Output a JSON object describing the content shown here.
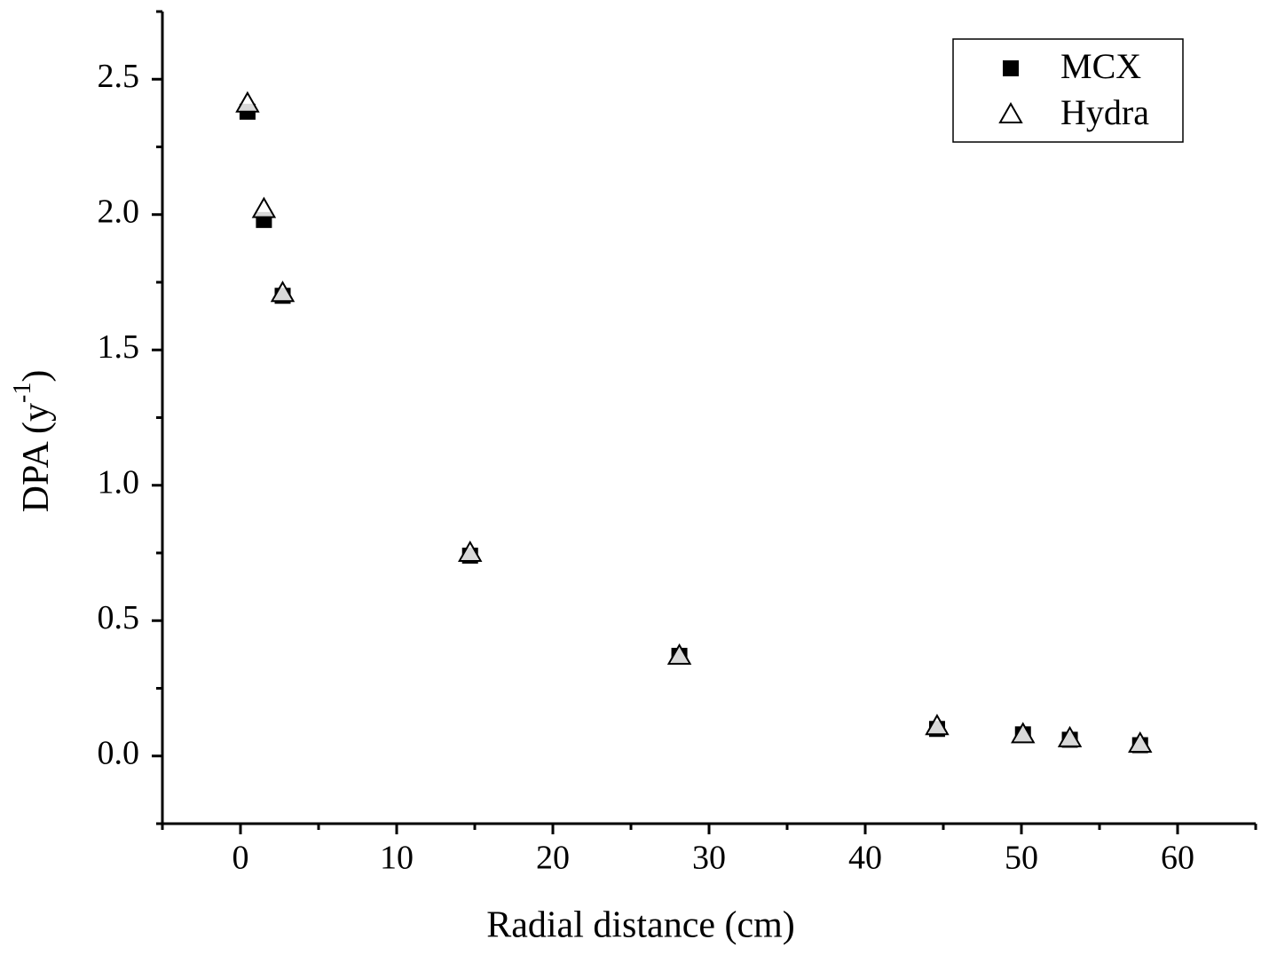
{
  "chart_data": {
    "type": "scatter",
    "x_label": "Radial distance (cm)",
    "y_label": [
      "DPA (y",
      "-1",
      ")"
    ],
    "xlim": [
      -5,
      65
    ],
    "xticks": [
      0,
      10,
      20,
      30,
      40,
      50,
      60
    ],
    "x_minor_ticks": [
      -5,
      5,
      15,
      25,
      35,
      45,
      55,
      65
    ],
    "ylim": [
      -0.25,
      2.75
    ],
    "yticks": [
      {
        "value": 0,
        "label": "0.0"
      },
      {
        "value": 0.5,
        "label": "0.5"
      },
      {
        "value": 1,
        "label": "1.0"
      },
      {
        "value": 1.5,
        "label": "1.5"
      },
      {
        "value": 2,
        "label": "2.0"
      },
      {
        "value": 2.5,
        "label": "2.5"
      }
    ],
    "y_minor_ticks": [
      -0.25,
      0.25,
      0.75,
      1.25,
      1.75,
      2.25,
      2.75
    ],
    "legend_position": "upper right",
    "series": [
      {
        "name": "MCX",
        "marker": "square",
        "color": "#000000",
        "x": [
          0.45,
          1.5,
          2.7,
          14.7,
          28.1,
          44.6,
          50.1,
          53.1,
          57.6
        ],
        "values": [
          2.38,
          1.98,
          1.7,
          0.74,
          0.37,
          0.1,
          0.08,
          0.06,
          0.04
        ]
      },
      {
        "name": "Hydra",
        "marker": "triangle",
        "color": "#000000",
        "x": [
          0.45,
          1.5,
          2.7,
          14.7,
          28.1,
          44.6,
          50.1,
          53.1,
          57.6
        ],
        "values": [
          2.41,
          2.02,
          1.71,
          0.75,
          0.37,
          0.11,
          0.08,
          0.065,
          0.045
        ]
      }
    ]
  }
}
